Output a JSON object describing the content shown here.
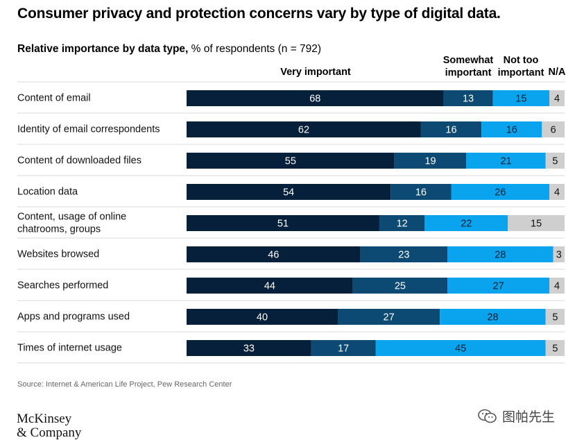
{
  "title": "Consumer privacy and protection concerns vary by type of digital data.",
  "subtitle": {
    "bold": "Relative importance by data type,",
    "rest": " % of respondents (n = 792)"
  },
  "legend": {
    "very": "Very important",
    "somewhat_1": "Somewhat",
    "somewhat_2": "important",
    "nottoo_1": "Not too",
    "nottoo_2": "important",
    "na": "N/A"
  },
  "source": "Source: Internet & American Life Project, Pew Research Center",
  "logo": {
    "line1": "McKinsey",
    "line2": "& Company"
  },
  "watermark": "图帕先生",
  "colors": {
    "very": "#061f3a",
    "somewhat": "#0d4a73",
    "nottoo": "#0aa3ee",
    "na": "#cfcfcf"
  },
  "chart_data": {
    "type": "bar",
    "orientation": "horizontal",
    "stacked": true,
    "categories": [
      "Content of email",
      "Identity of email correspondents",
      "Content of downloaded files",
      "Location data",
      "Content, usage of online chatrooms, groups",
      "Websites browsed",
      "Searches performed",
      "Apps and programs used",
      "Times of internet usage"
    ],
    "series": [
      {
        "name": "Very important",
        "values": [
          68,
          62,
          55,
          54,
          51,
          46,
          44,
          40,
          33
        ]
      },
      {
        "name": "Somewhat important",
        "values": [
          13,
          16,
          19,
          16,
          12,
          23,
          25,
          27,
          17
        ]
      },
      {
        "name": "Not too important",
        "values": [
          15,
          16,
          21,
          26,
          22,
          28,
          27,
          28,
          45
        ]
      },
      {
        "name": "N/A",
        "values": [
          4,
          6,
          5,
          4,
          15,
          3,
          4,
          5,
          5
        ]
      }
    ]
  }
}
